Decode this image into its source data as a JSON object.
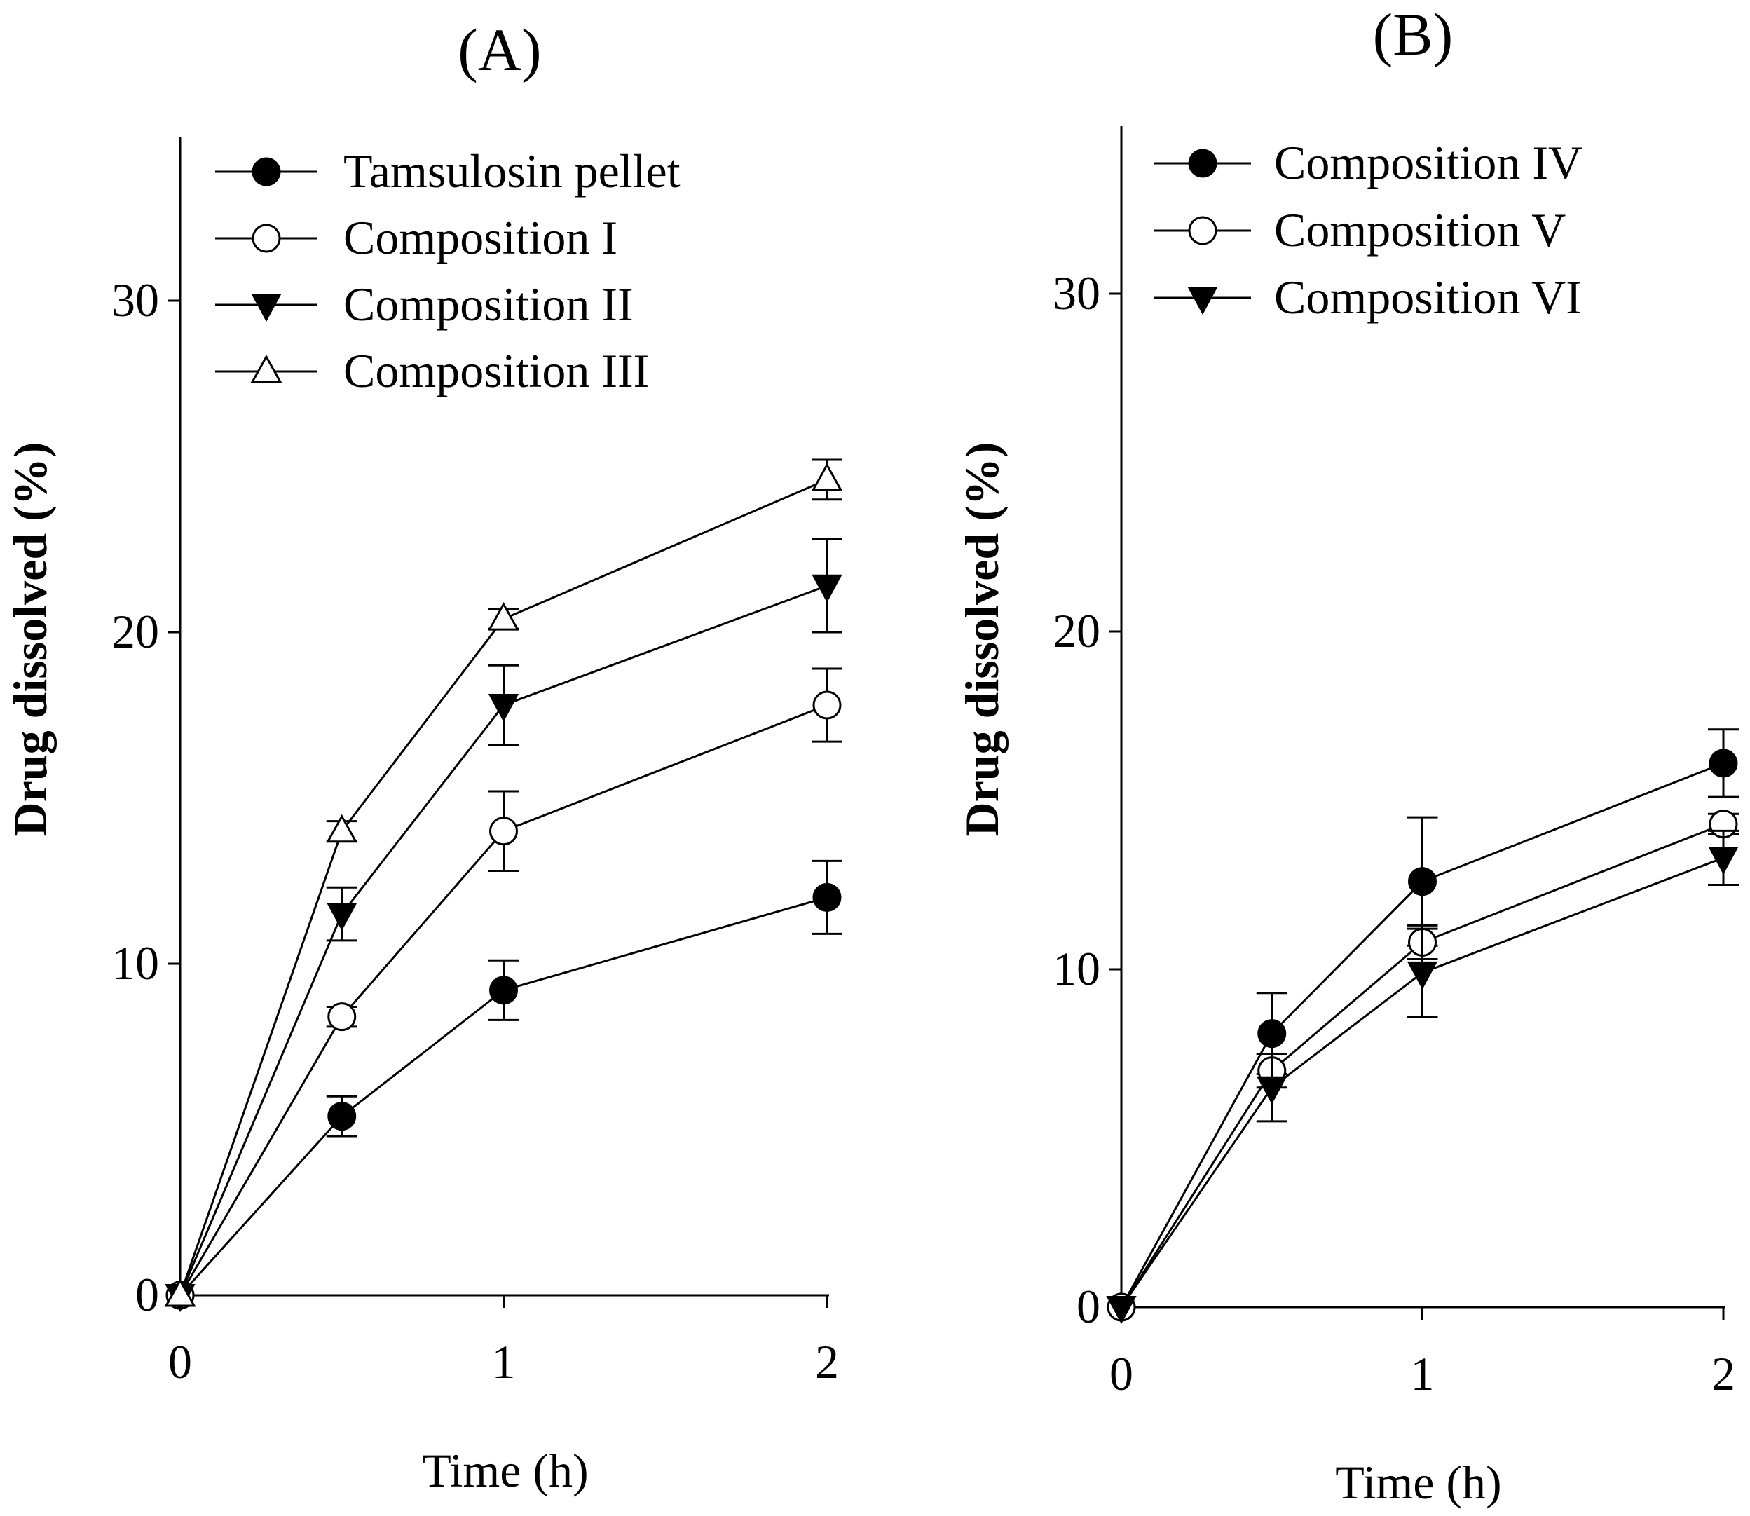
{
  "chart_data": [
    {
      "type": "line",
      "title": "(A)",
      "xlabel": "Time (h)",
      "ylabel": "Drug dissolved (%)",
      "xlim": [
        0,
        2
      ],
      "ylim": [
        0,
        35
      ],
      "xticks": [
        "0",
        "1",
        "2"
      ],
      "yticks": [
        "0",
        "10",
        "20",
        "30"
      ],
      "legend_position": "top-left",
      "grid": false,
      "series": [
        {
          "name": "Tamsulosin pellet",
          "marker": "filled-circle",
          "x": [
            0,
            0.5,
            1,
            2
          ],
          "y": [
            0,
            5.4,
            9.2,
            12.0
          ],
          "err": [
            0,
            0.6,
            0.9,
            1.1
          ]
        },
        {
          "name": "Composition I",
          "marker": "open-circle",
          "x": [
            0,
            0.5,
            1,
            2
          ],
          "y": [
            0,
            8.4,
            14.0,
            17.8
          ],
          "err": [
            0,
            0.3,
            1.2,
            1.1
          ]
        },
        {
          "name": "Composition II",
          "marker": "filled-triangle-down",
          "x": [
            0,
            0.5,
            1,
            2
          ],
          "y": [
            0,
            11.5,
            17.8,
            21.4
          ],
          "err": [
            0,
            0.8,
            1.2,
            1.4
          ]
        },
        {
          "name": "Composition III",
          "marker": "open-triangle-up",
          "x": [
            0,
            0.5,
            1,
            2
          ],
          "y": [
            0,
            14.0,
            20.4,
            24.6
          ],
          "err": [
            0,
            0.3,
            0.3,
            0.6
          ]
        }
      ]
    },
    {
      "type": "line",
      "title": "(B)",
      "xlabel": "Time (h)",
      "ylabel": "Drug dissolved (%)",
      "xlim": [
        0,
        2
      ],
      "ylim": [
        0,
        35
      ],
      "xticks": [
        "0",
        "1",
        "2"
      ],
      "yticks": [
        "0",
        "10",
        "20",
        "30"
      ],
      "legend_position": "top-left",
      "grid": false,
      "series": [
        {
          "name": "Composition IV",
          "marker": "filled-circle",
          "x": [
            0,
            0.5,
            1,
            2
          ],
          "y": [
            0,
            8.1,
            12.6,
            16.1
          ],
          "err": [
            0,
            1.2,
            1.9,
            1.0
          ]
        },
        {
          "name": "Composition V",
          "marker": "open-circle",
          "x": [
            0,
            0.5,
            1,
            2
          ],
          "y": [
            0,
            7.0,
            10.8,
            14.3
          ],
          "err": [
            0,
            0.5,
            0.5,
            0.3
          ]
        },
        {
          "name": "Composition VI",
          "marker": "filled-triangle-down",
          "x": [
            0,
            0.5,
            1,
            2
          ],
          "y": [
            0,
            6.5,
            9.9,
            13.3
          ],
          "err": [
            0,
            1.0,
            1.3,
            0.8
          ]
        }
      ]
    }
  ]
}
